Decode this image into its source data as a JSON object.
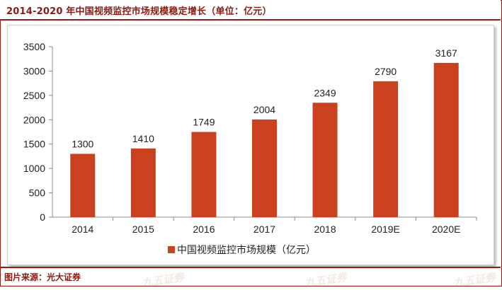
{
  "header": {
    "title": "2014-2020 年中国视频监控市场规模稳定增长（单位：亿元）"
  },
  "footer": {
    "source": "图片来源：光大证券",
    "watermark": "九五证券"
  },
  "colors": {
    "bar": "#c9411f",
    "frame": "#9a1c10",
    "title_text": "#8b1a10"
  },
  "chart_data": {
    "type": "bar",
    "title": "",
    "xlabel": "",
    "ylabel": "",
    "categories": [
      "2014",
      "2015",
      "2016",
      "2017",
      "2018",
      "2019E",
      "2020E"
    ],
    "series": [
      {
        "name": "中国视频监控市场规模（亿元）",
        "values": [
          1300,
          1410,
          1749,
          2004,
          2349,
          2790,
          3167
        ]
      }
    ],
    "ylim": [
      0,
      3500
    ],
    "yticks": [
      0,
      500,
      1000,
      1500,
      2000,
      2500,
      3000,
      3500
    ],
    "grid": false,
    "legend": "bottom-center",
    "data_labels": true
  }
}
